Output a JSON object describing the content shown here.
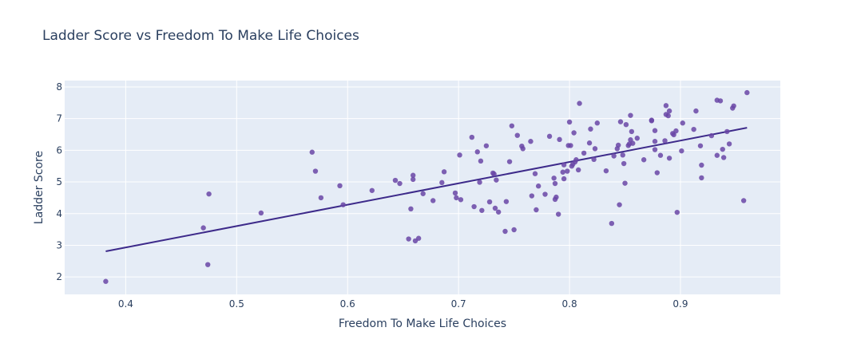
{
  "chart_data": {
    "type": "scatter",
    "title": "Ladder Score vs Freedom To Make Life Choices",
    "xlabel": "Freedom To Make Life Choices",
    "ylabel": "Ladder Score",
    "xlim": [
      0.345,
      0.99
    ],
    "ylim": [
      1.45,
      8.2
    ],
    "xticks": [
      0.4,
      0.5,
      0.6,
      0.7,
      0.8,
      0.9
    ],
    "yticks": [
      2,
      3,
      4,
      5,
      6,
      7,
      8
    ],
    "grid": true,
    "legend": "none",
    "colors": {
      "background": "#e5ecf6",
      "grid": "#ffffff",
      "marker": "#6a46a6",
      "trendline": "#3d2a8a",
      "text": "#2a3f5f"
    },
    "series": [
      {
        "values_xy": [
          [
            0.382,
            1.86
          ],
          [
            0.47,
            3.55
          ],
          [
            0.474,
            2.39
          ],
          [
            0.475,
            4.62
          ],
          [
            0.522,
            4.02
          ],
          [
            0.568,
            5.94
          ],
          [
            0.571,
            5.34
          ],
          [
            0.576,
            4.5
          ],
          [
            0.593,
            4.88
          ],
          [
            0.596,
            4.28
          ],
          [
            0.622,
            4.73
          ],
          [
            0.643,
            5.05
          ],
          [
            0.647,
            4.95
          ],
          [
            0.655,
            3.2
          ],
          [
            0.657,
            4.15
          ],
          [
            0.659,
            5.21
          ],
          [
            0.659,
            5.08
          ],
          [
            0.661,
            3.14
          ],
          [
            0.664,
            3.22
          ],
          [
            0.668,
            4.63
          ],
          [
            0.677,
            4.41
          ],
          [
            0.685,
            4.98
          ],
          [
            0.687,
            5.32
          ],
          [
            0.697,
            4.65
          ],
          [
            0.698,
            4.5
          ],
          [
            0.701,
            5.85
          ],
          [
            0.702,
            4.44
          ],
          [
            0.712,
            6.41
          ],
          [
            0.714,
            4.22
          ],
          [
            0.717,
            5.95
          ],
          [
            0.719,
            4.99
          ],
          [
            0.72,
            5.66
          ],
          [
            0.721,
            4.1
          ],
          [
            0.725,
            6.14
          ],
          [
            0.728,
            4.37
          ],
          [
            0.731,
            5.28
          ],
          [
            0.732,
            5.25
          ],
          [
            0.733,
            4.17
          ],
          [
            0.734,
            5.06
          ],
          [
            0.736,
            4.05
          ],
          [
            0.742,
            3.44
          ],
          [
            0.743,
            4.38
          ],
          [
            0.746,
            5.64
          ],
          [
            0.748,
            6.77
          ],
          [
            0.75,
            3.49
          ],
          [
            0.753,
            6.47
          ],
          [
            0.757,
            6.13
          ],
          [
            0.758,
            6.05
          ],
          [
            0.765,
            6.28
          ],
          [
            0.766,
            4.56
          ],
          [
            0.769,
            5.26
          ],
          [
            0.77,
            4.12
          ],
          [
            0.772,
            4.87
          ],
          [
            0.778,
            4.61
          ],
          [
            0.782,
            6.44
          ],
          [
            0.786,
            5.12
          ],
          [
            0.787,
            4.95
          ],
          [
            0.787,
            4.45
          ],
          [
            0.788,
            4.52
          ],
          [
            0.79,
            3.98
          ],
          [
            0.791,
            6.34
          ],
          [
            0.794,
            5.31
          ],
          [
            0.795,
            5.54
          ],
          [
            0.795,
            5.1
          ],
          [
            0.798,
            5.34
          ],
          [
            0.799,
            6.15
          ],
          [
            0.8,
            6.89
          ],
          [
            0.801,
            6.15
          ],
          [
            0.802,
            5.5
          ],
          [
            0.803,
            5.56
          ],
          [
            0.804,
            6.55
          ],
          [
            0.805,
            5.63
          ],
          [
            0.806,
            5.7
          ],
          [
            0.808,
            5.38
          ],
          [
            0.809,
            7.48
          ],
          [
            0.813,
            5.91
          ],
          [
            0.818,
            6.23
          ],
          [
            0.819,
            6.67
          ],
          [
            0.822,
            5.71
          ],
          [
            0.823,
            6.05
          ],
          [
            0.825,
            6.86
          ],
          [
            0.833,
            5.35
          ],
          [
            0.838,
            3.69
          ],
          [
            0.84,
            5.82
          ],
          [
            0.843,
            6.05
          ],
          [
            0.844,
            6.16
          ],
          [
            0.845,
            4.28
          ],
          [
            0.846,
            6.9
          ],
          [
            0.848,
            5.85
          ],
          [
            0.849,
            5.58
          ],
          [
            0.85,
            4.96
          ],
          [
            0.851,
            6.81
          ],
          [
            0.853,
            6.15
          ],
          [
            0.854,
            6.2
          ],
          [
            0.855,
            7.1
          ],
          [
            0.855,
            6.33
          ],
          [
            0.856,
            6.59
          ],
          [
            0.857,
            6.22
          ],
          [
            0.861,
            6.38
          ],
          [
            0.867,
            5.7
          ],
          [
            0.874,
            6.95
          ],
          [
            0.874,
            6.93
          ],
          [
            0.877,
            6.62
          ],
          [
            0.877,
            6.28
          ],
          [
            0.877,
            6.02
          ],
          [
            0.879,
            5.29
          ],
          [
            0.882,
            5.84
          ],
          [
            0.886,
            6.3
          ],
          [
            0.887,
            7.41
          ],
          [
            0.887,
            7.13
          ],
          [
            0.889,
            7.09
          ],
          [
            0.89,
            5.75
          ],
          [
            0.89,
            7.24
          ],
          [
            0.893,
            6.53
          ],
          [
            0.894,
            6.49
          ],
          [
            0.896,
            6.61
          ],
          [
            0.897,
            4.04
          ],
          [
            0.901,
            5.98
          ],
          [
            0.902,
            6.86
          ],
          [
            0.912,
            6.66
          ],
          [
            0.914,
            7.24
          ],
          [
            0.918,
            6.14
          ],
          [
            0.919,
            5.53
          ],
          [
            0.919,
            5.13
          ],
          [
            0.928,
            6.46
          ],
          [
            0.933,
            5.84
          ],
          [
            0.933,
            7.58
          ],
          [
            0.936,
            7.56
          ],
          [
            0.938,
            6.03
          ],
          [
            0.939,
            5.77
          ],
          [
            0.942,
            6.59
          ],
          [
            0.944,
            6.2
          ],
          [
            0.947,
            7.33
          ],
          [
            0.948,
            7.4
          ],
          [
            0.957,
            4.41
          ],
          [
            0.96,
            7.82
          ]
        ]
      }
    ],
    "trendline": {
      "x": [
        0.382,
        0.96
      ],
      "y": [
        2.81,
        6.71
      ]
    }
  }
}
